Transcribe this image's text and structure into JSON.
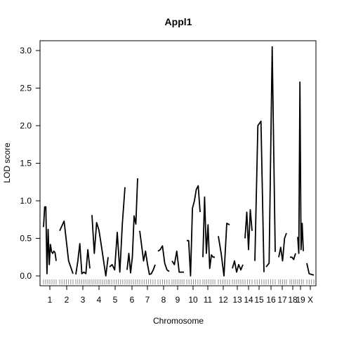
{
  "chart_data": {
    "type": "line",
    "title": "Appl1",
    "xlabel": "Chromosome",
    "ylabel": "LOD score",
    "ylim": [
      -0.1,
      3.15
    ],
    "y_ticks": [
      0.0,
      0.5,
      1.0,
      1.5,
      2.0,
      2.5,
      3.0
    ],
    "y_tick_labels": [
      "0.0",
      "0.5",
      "1.0",
      "1.5",
      "2.0",
      "2.5",
      "3.0"
    ],
    "chromosomes": [
      "1",
      "2",
      "3",
      "4",
      "5",
      "6",
      "7",
      "8",
      "9",
      "10",
      "11",
      "12",
      "13",
      "14",
      "15",
      "16",
      "17",
      "18",
      "19",
      "X"
    ],
    "x_tick_labels": [
      "1",
      "2",
      "3",
      "4",
      "5",
      "6",
      "7",
      "8",
      "9",
      "10",
      "11",
      "12",
      "13",
      "14",
      "15",
      "16",
      "17",
      "18",
      "19",
      "X"
    ],
    "series": [
      {
        "chr": "1",
        "values": [
          0.65,
          0.92,
          0.92,
          0.03,
          0.62,
          0.15,
          0.42,
          0.32,
          0.3,
          0.33,
          0.31,
          0.2
        ]
      },
      {
        "chr": "2",
        "values": [
          0.6,
          0.73,
          0.2,
          0.03
        ]
      },
      {
        "chr": "3",
        "values": [
          0.02,
          0.2,
          0.43,
          0.03,
          0.05,
          0.03,
          0.35,
          0.1
        ]
      },
      {
        "chr": "4",
        "values": [
          0.81,
          0.3,
          0.71,
          0.61,
          0.42,
          0.21,
          0.0,
          0.25
        ]
      },
      {
        "chr": "5",
        "values": [
          0.12,
          0.15,
          0.08,
          0.58,
          0.05,
          0.7,
          1.18
        ]
      },
      {
        "chr": "6",
        "values": [
          0.08,
          0.3,
          0.04,
          0.25,
          0.8,
          0.69,
          1.3
        ]
      },
      {
        "chr": "7",
        "values": [
          0.6,
          0.4,
          0.2,
          0.33,
          0.16,
          0.02,
          0.03,
          0.08,
          0.15
        ]
      },
      {
        "chr": "8",
        "values": [
          0.33,
          0.35,
          0.4,
          0.17,
          0.08,
          0.06
        ]
      },
      {
        "chr": "9",
        "values": [
          0.2,
          0.15,
          0.33,
          0.05,
          0.05,
          0.05
        ]
      },
      {
        "chr": "10",
        "values": [
          0.47,
          0.47,
          0.0,
          0.9,
          1.0,
          1.15,
          1.2,
          0.85
        ]
      },
      {
        "chr": "11",
        "values": [
          0.25,
          1.05,
          0.3,
          0.68,
          0.1,
          0.28,
          0.25,
          0.25
        ]
      },
      {
        "chr": "12",
        "values": [
          0.53,
          0.3,
          0.0,
          0.7,
          0.68
        ]
      },
      {
        "chr": "13",
        "values": [
          0.1,
          0.2,
          0.05,
          0.15,
          0.08,
          0.15
        ]
      },
      {
        "chr": "14",
        "values": [
          0.5,
          0.85,
          0.35,
          0.88,
          0.6
        ]
      },
      {
        "chr": "15",
        "values": [
          0.2,
          2.0,
          2.06,
          0.05
        ]
      },
      {
        "chr": "16",
        "values": [
          0.12,
          0.17,
          3.05,
          0.32
        ]
      },
      {
        "chr": "17",
        "values": [
          0.25,
          0.38,
          0.2,
          0.5,
          0.57
        ]
      },
      {
        "chr": "18",
        "values": [
          0.25,
          0.25,
          0.22,
          0.3
        ]
      },
      {
        "chr": "19",
        "values": [
          0.52,
          0.3,
          2.58,
          0.35,
          0.7,
          0.33
        ]
      },
      {
        "chr": "X",
        "values": [
          0.17,
          0.03,
          0.02,
          0.01
        ]
      }
    ],
    "color": "#000000",
    "grid": false,
    "legend": "none"
  }
}
